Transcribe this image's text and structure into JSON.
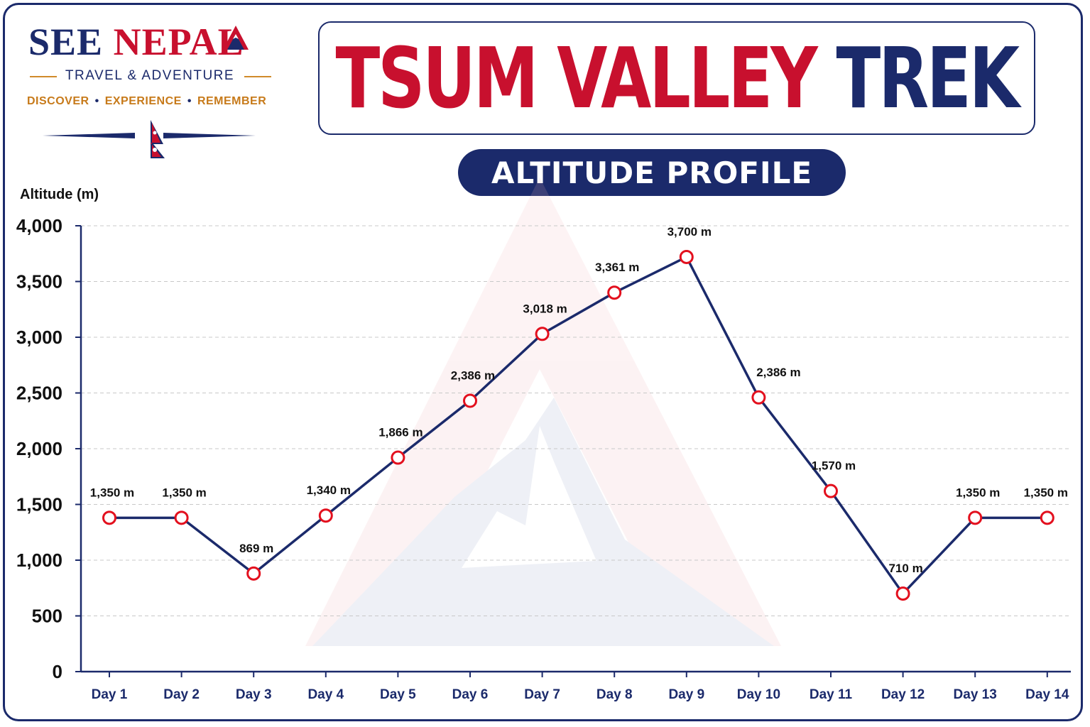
{
  "brand": {
    "name_part1": "SEE",
    "name_part2": "NEPAL",
    "tagline": "TRAVEL & ADVENTURE",
    "motto": [
      "DISCOVER",
      "EXPERIENCE",
      "REMEMBER"
    ],
    "colors": {
      "navy": "#1b2a6b",
      "red": "#c8102e",
      "gold": "#c77a1a"
    }
  },
  "title": {
    "part1": "TSUM VALLEY",
    "part2": "TREK"
  },
  "subtitle": "ALTITUDE PROFILE",
  "chart_data": {
    "type": "line",
    "ylabel": "Altitude (m)",
    "xlabel": "",
    "ylim": [
      0,
      4000
    ],
    "yticks": [
      0,
      500,
      1000,
      1500,
      2000,
      2500,
      3000,
      3500,
      4000
    ],
    "ytick_labels": [
      "0",
      "500",
      "1,000",
      "1,500",
      "2,000",
      "2,500",
      "3,000",
      "3,500",
      "4,000"
    ],
    "grid": true,
    "categories": [
      "Day 1",
      "Day 2",
      "Day 3",
      "Day 4",
      "Day 5",
      "Day 6",
      "Day 7",
      "Day 8",
      "Day 9",
      "Day 10",
      "Day 11",
      "Day 12",
      "Day 13",
      "Day 14"
    ],
    "series": [
      {
        "values": [
          1350,
          1350,
          869,
          1340,
          1866,
          2386,
          3018,
          3361,
          3700,
          2386,
          1570,
          710,
          1350,
          1350
        ],
        "point_values": [
          1380,
          1380,
          880,
          1400,
          1920,
          2430,
          3030,
          3400,
          3720,
          2460,
          1620,
          700,
          1380,
          1380
        ],
        "labels": [
          "1,350 m",
          "1,350 m",
          "869 m",
          "1,340 m",
          "1,866 m",
          "2,386 m",
          "3,018 m",
          "3,361 m",
          "3,700 m",
          "2,386 m",
          "1,570 m",
          "710 m",
          "1,350 m",
          "1,350 m"
        ],
        "line_color": "#1b2a6b",
        "marker_color": "#e3101e"
      }
    ]
  }
}
